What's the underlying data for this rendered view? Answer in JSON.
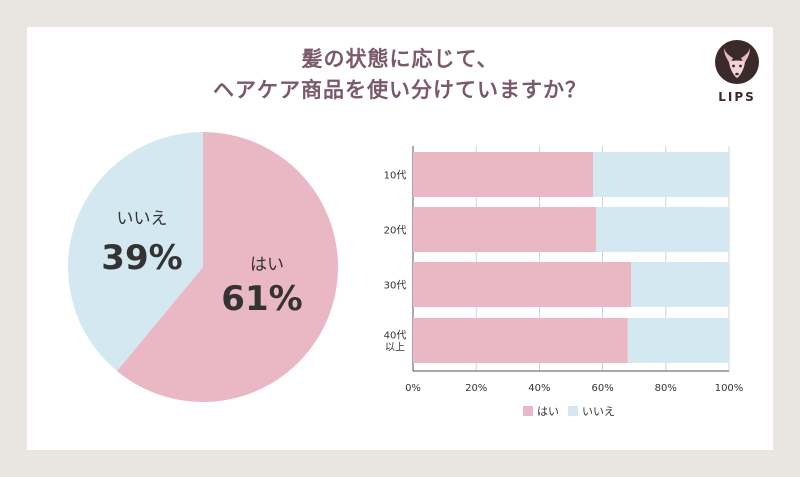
{
  "title": {
    "line1": "髪の状態に応じて、",
    "line2": "ヘアケア商品を使い分けていますか？"
  },
  "logo": {
    "text": "LIPS",
    "icon": "deer-head-icon"
  },
  "colors": {
    "yes": "#eab8c4",
    "no": "#d3e8f1",
    "title": "#7a5a6a",
    "text": "#333333"
  },
  "chart_data": [
    {
      "type": "pie",
      "slices": [
        {
          "label": "はい",
          "value": 61,
          "display": "61%"
        },
        {
          "label": "いいえ",
          "value": 39,
          "display": "39%"
        }
      ]
    },
    {
      "type": "bar",
      "orientation": "horizontal",
      "stacked": true,
      "categories": [
        [
          "10代"
        ],
        [
          "20代"
        ],
        [
          "30代"
        ],
        [
          "40代",
          "以上"
        ]
      ],
      "series": [
        {
          "name": "はい",
          "values": [
            57,
            58,
            69,
            68
          ]
        },
        {
          "name": "いいえ",
          "values": [
            43,
            42,
            31,
            32
          ]
        }
      ],
      "xlim": [
        0,
        100
      ],
      "xticks": [
        "0%",
        "20%",
        "40%",
        "60%",
        "80%",
        "100%"
      ],
      "grid": true,
      "legend": "bottom"
    }
  ]
}
